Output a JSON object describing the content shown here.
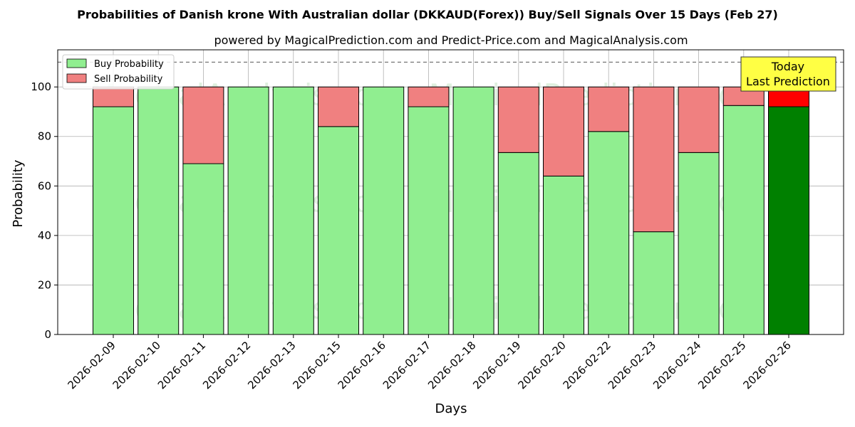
{
  "chart_data": {
    "type": "bar",
    "stacked": true,
    "title": "Probabilities of Danish krone With Australian dollar (DKKAUD(Forex)) Buy/Sell Signals Over 15 Days (Feb 27)",
    "subtitle": "powered by MagicalPrediction.com and Predict-Price.com and MagicalAnalysis.com",
    "xlabel": "Days",
    "ylabel": "Probability",
    "ylim": [
      0,
      115
    ],
    "yticks": [
      0,
      20,
      40,
      60,
      80,
      100
    ],
    "reference_line": 110,
    "grid": true,
    "legend_position": "top-left",
    "categories": [
      "2026-02-09",
      "2026-02-10",
      "2026-02-11",
      "2026-02-12",
      "2026-02-13",
      "2026-02-15",
      "2026-02-16",
      "2026-02-17",
      "2026-02-18",
      "2026-02-19",
      "2026-02-20",
      "2026-02-22",
      "2026-02-23",
      "2026-02-24",
      "2026-02-25",
      "2026-02-26"
    ],
    "series": [
      {
        "name": "Buy Probability",
        "color": "#90ee90",
        "highlight_color": "#008000",
        "values": [
          92,
          100,
          69,
          100,
          100,
          84,
          100,
          92,
          100,
          73.5,
          64,
          82,
          41.5,
          73.5,
          92.5,
          92
        ]
      },
      {
        "name": "Sell Probability",
        "color": "#f08080",
        "highlight_color": "#ff0000",
        "values": [
          8,
          0,
          31,
          0,
          0,
          16,
          0,
          8,
          0,
          26.5,
          36,
          18,
          58.5,
          26.5,
          7.5,
          8
        ]
      }
    ],
    "highlight_index": 15,
    "annotation": {
      "line1": "Today",
      "line2": "Last Prediction",
      "color": "#ffff44"
    },
    "watermarks": [
      "MagicalAnalysis.com",
      "MagicalPrediction.com"
    ]
  }
}
